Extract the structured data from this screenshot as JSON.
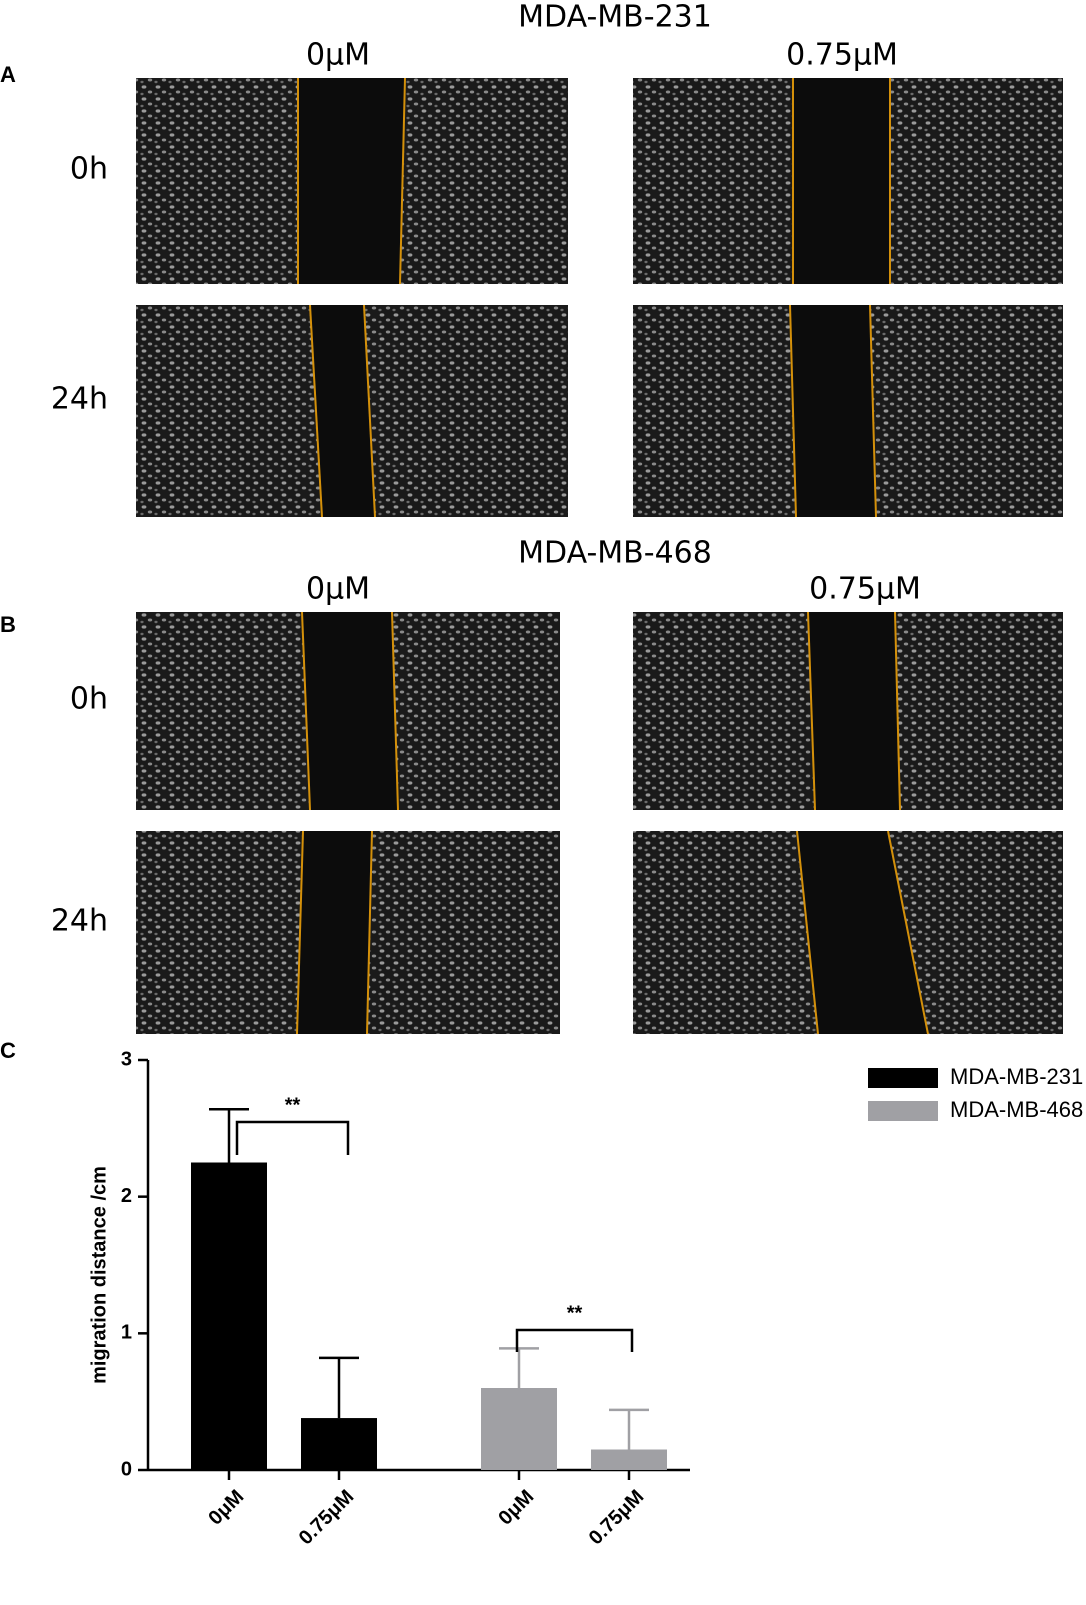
{
  "panels": [
    {
      "label": "A",
      "cell_line": "MDA-MB-231",
      "columns": [
        "0μM",
        "0.75μM"
      ],
      "rows": [
        "0h",
        "24h"
      ]
    },
    {
      "label": "B",
      "cell_line": "MDA-MB-468",
      "columns": [
        "0μM",
        "0.75μM"
      ],
      "rows": [
        "0h",
        "24h"
      ]
    }
  ],
  "chart_label": "C",
  "chart_data": {
    "type": "bar",
    "ylabel": "migration distance /cm",
    "categories": [
      "0μM",
      "0.75μM",
      "0μM",
      "0.75μM"
    ],
    "series": [
      {
        "name": "MDA-MB-231",
        "color": "#000000",
        "values": [
          2.25,
          0.38,
          null,
          null
        ],
        "errors": [
          0.39,
          0.44,
          null,
          null
        ]
      },
      {
        "name": "MDA-MB-468",
        "color": "#a0a0a4",
        "values": [
          null,
          null,
          0.6,
          0.15
        ],
        "errors": [
          null,
          null,
          0.29,
          0.29
        ]
      }
    ],
    "ylim": [
      0,
      3
    ],
    "yticks": [
      0,
      1,
      2,
      3
    ],
    "annotations": [
      "**",
      "**"
    ]
  }
}
